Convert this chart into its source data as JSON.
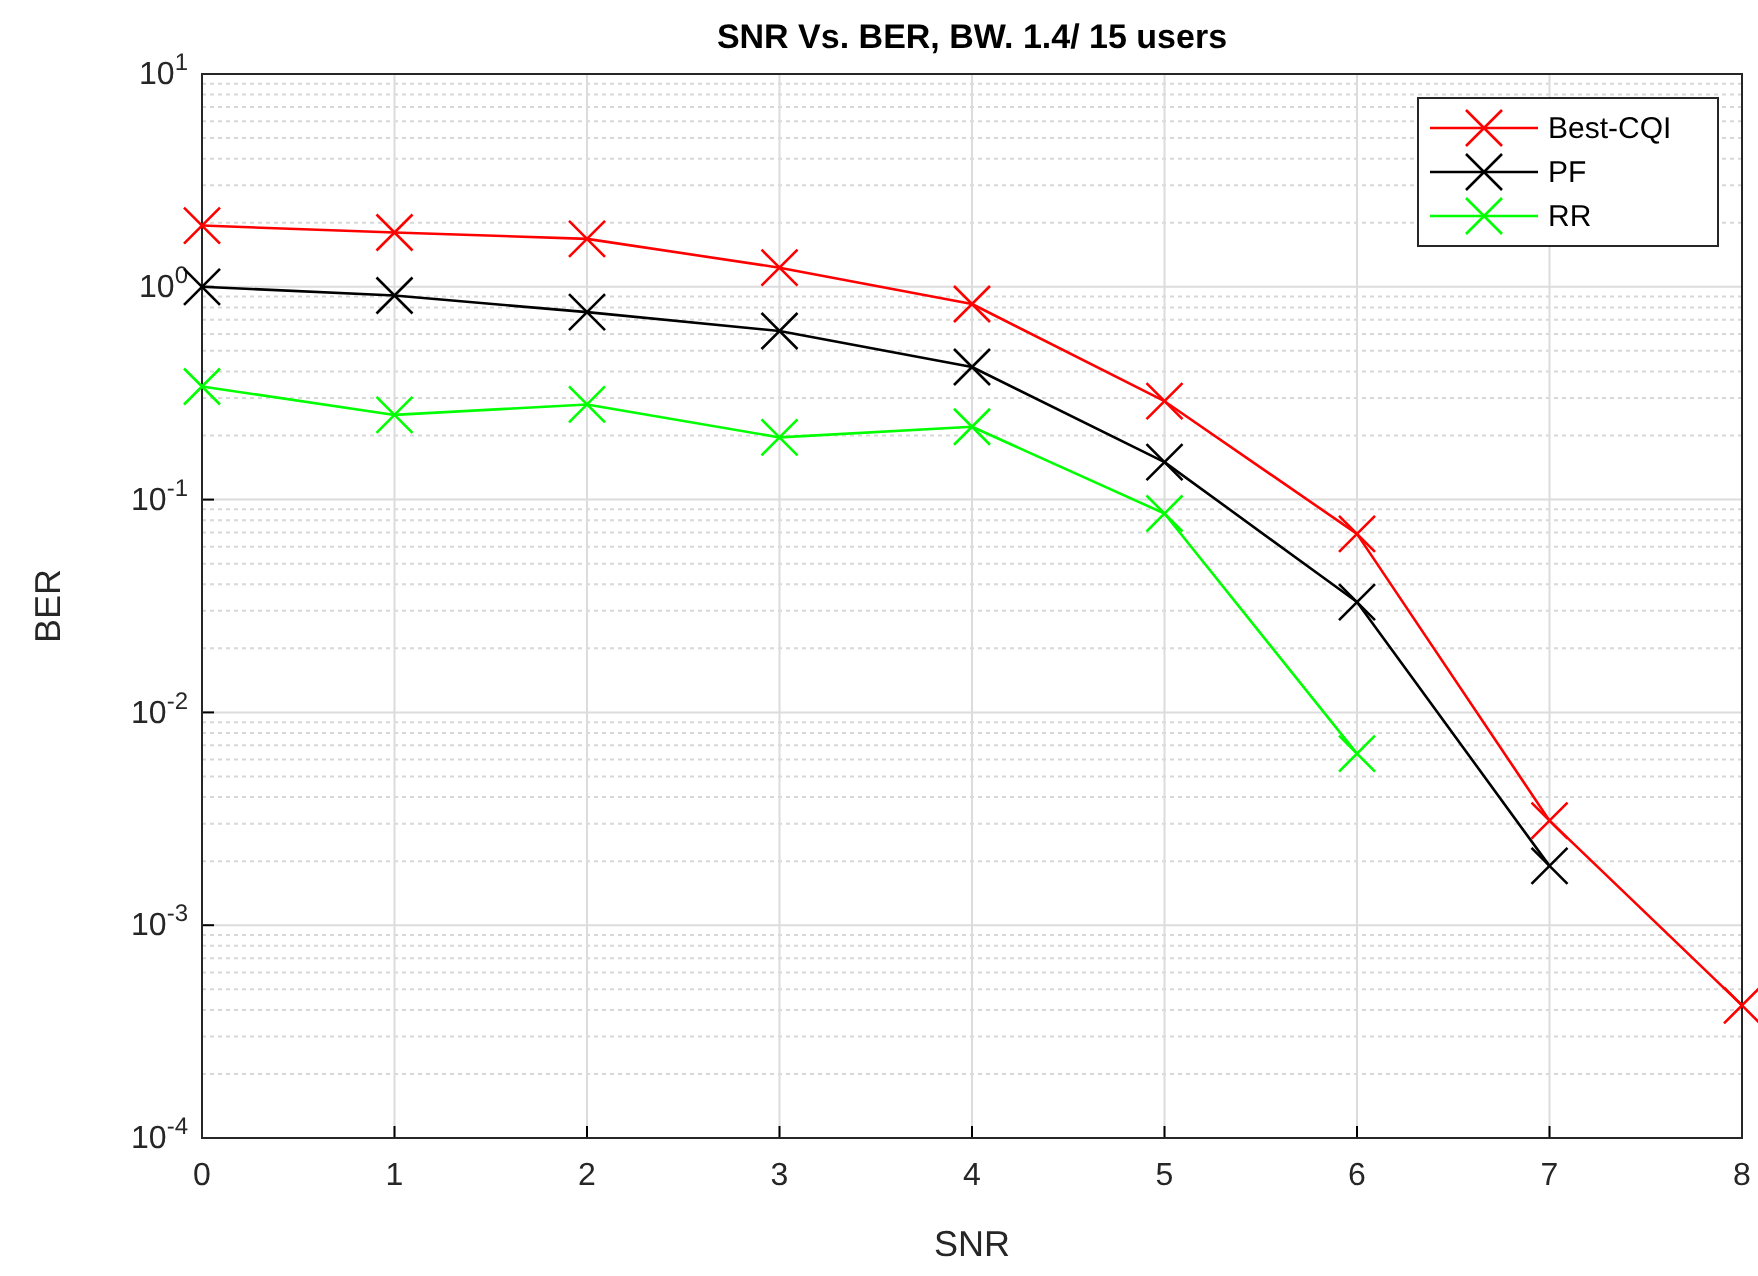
{
  "chart_data": {
    "type": "line",
    "title": "SNR Vs. BER, BW. 1.4/ 15 users",
    "xlabel": "SNR",
    "ylabel": "BER",
    "x": [
      0,
      1,
      2,
      3,
      4,
      5,
      6,
      7,
      8
    ],
    "series": [
      {
        "name": "Best-CQI",
        "color": "#ff0000",
        "values": [
          1.94,
          1.8,
          1.68,
          1.23,
          0.83,
          0.29,
          0.069,
          0.0031,
          0.00042
        ]
      },
      {
        "name": "PF",
        "color": "#000000",
        "values": [
          1.0,
          0.91,
          0.76,
          0.62,
          0.42,
          0.15,
          0.033,
          0.0019,
          null
        ]
      },
      {
        "name": "RR",
        "color": "#00ff00",
        "values": [
          0.34,
          0.25,
          0.28,
          0.196,
          0.22,
          0.086,
          0.0064,
          null,
          null
        ]
      }
    ],
    "log": true,
    "xlim": [
      0,
      8
    ],
    "xticks": [
      0,
      1,
      2,
      3,
      4,
      5,
      6,
      7,
      8
    ],
    "ylim": [
      0.0001,
      10
    ],
    "yticks": [
      {
        "value": 0.0001,
        "label": "10$^{-4}$"
      },
      {
        "value": 0.001,
        "label": "10$^{-3}$"
      },
      {
        "value": 0.01,
        "label": "10$^{-2}$"
      },
      {
        "value": 0.1,
        "label": "10$^{-1}$"
      },
      {
        "value": 1,
        "label": "10$^{0}$"
      },
      {
        "value": 10,
        "label": "10$^{1}$"
      }
    ],
    "grid": true,
    "legend": "top right",
    "marker": "cross",
    "line_style": "solid"
  }
}
